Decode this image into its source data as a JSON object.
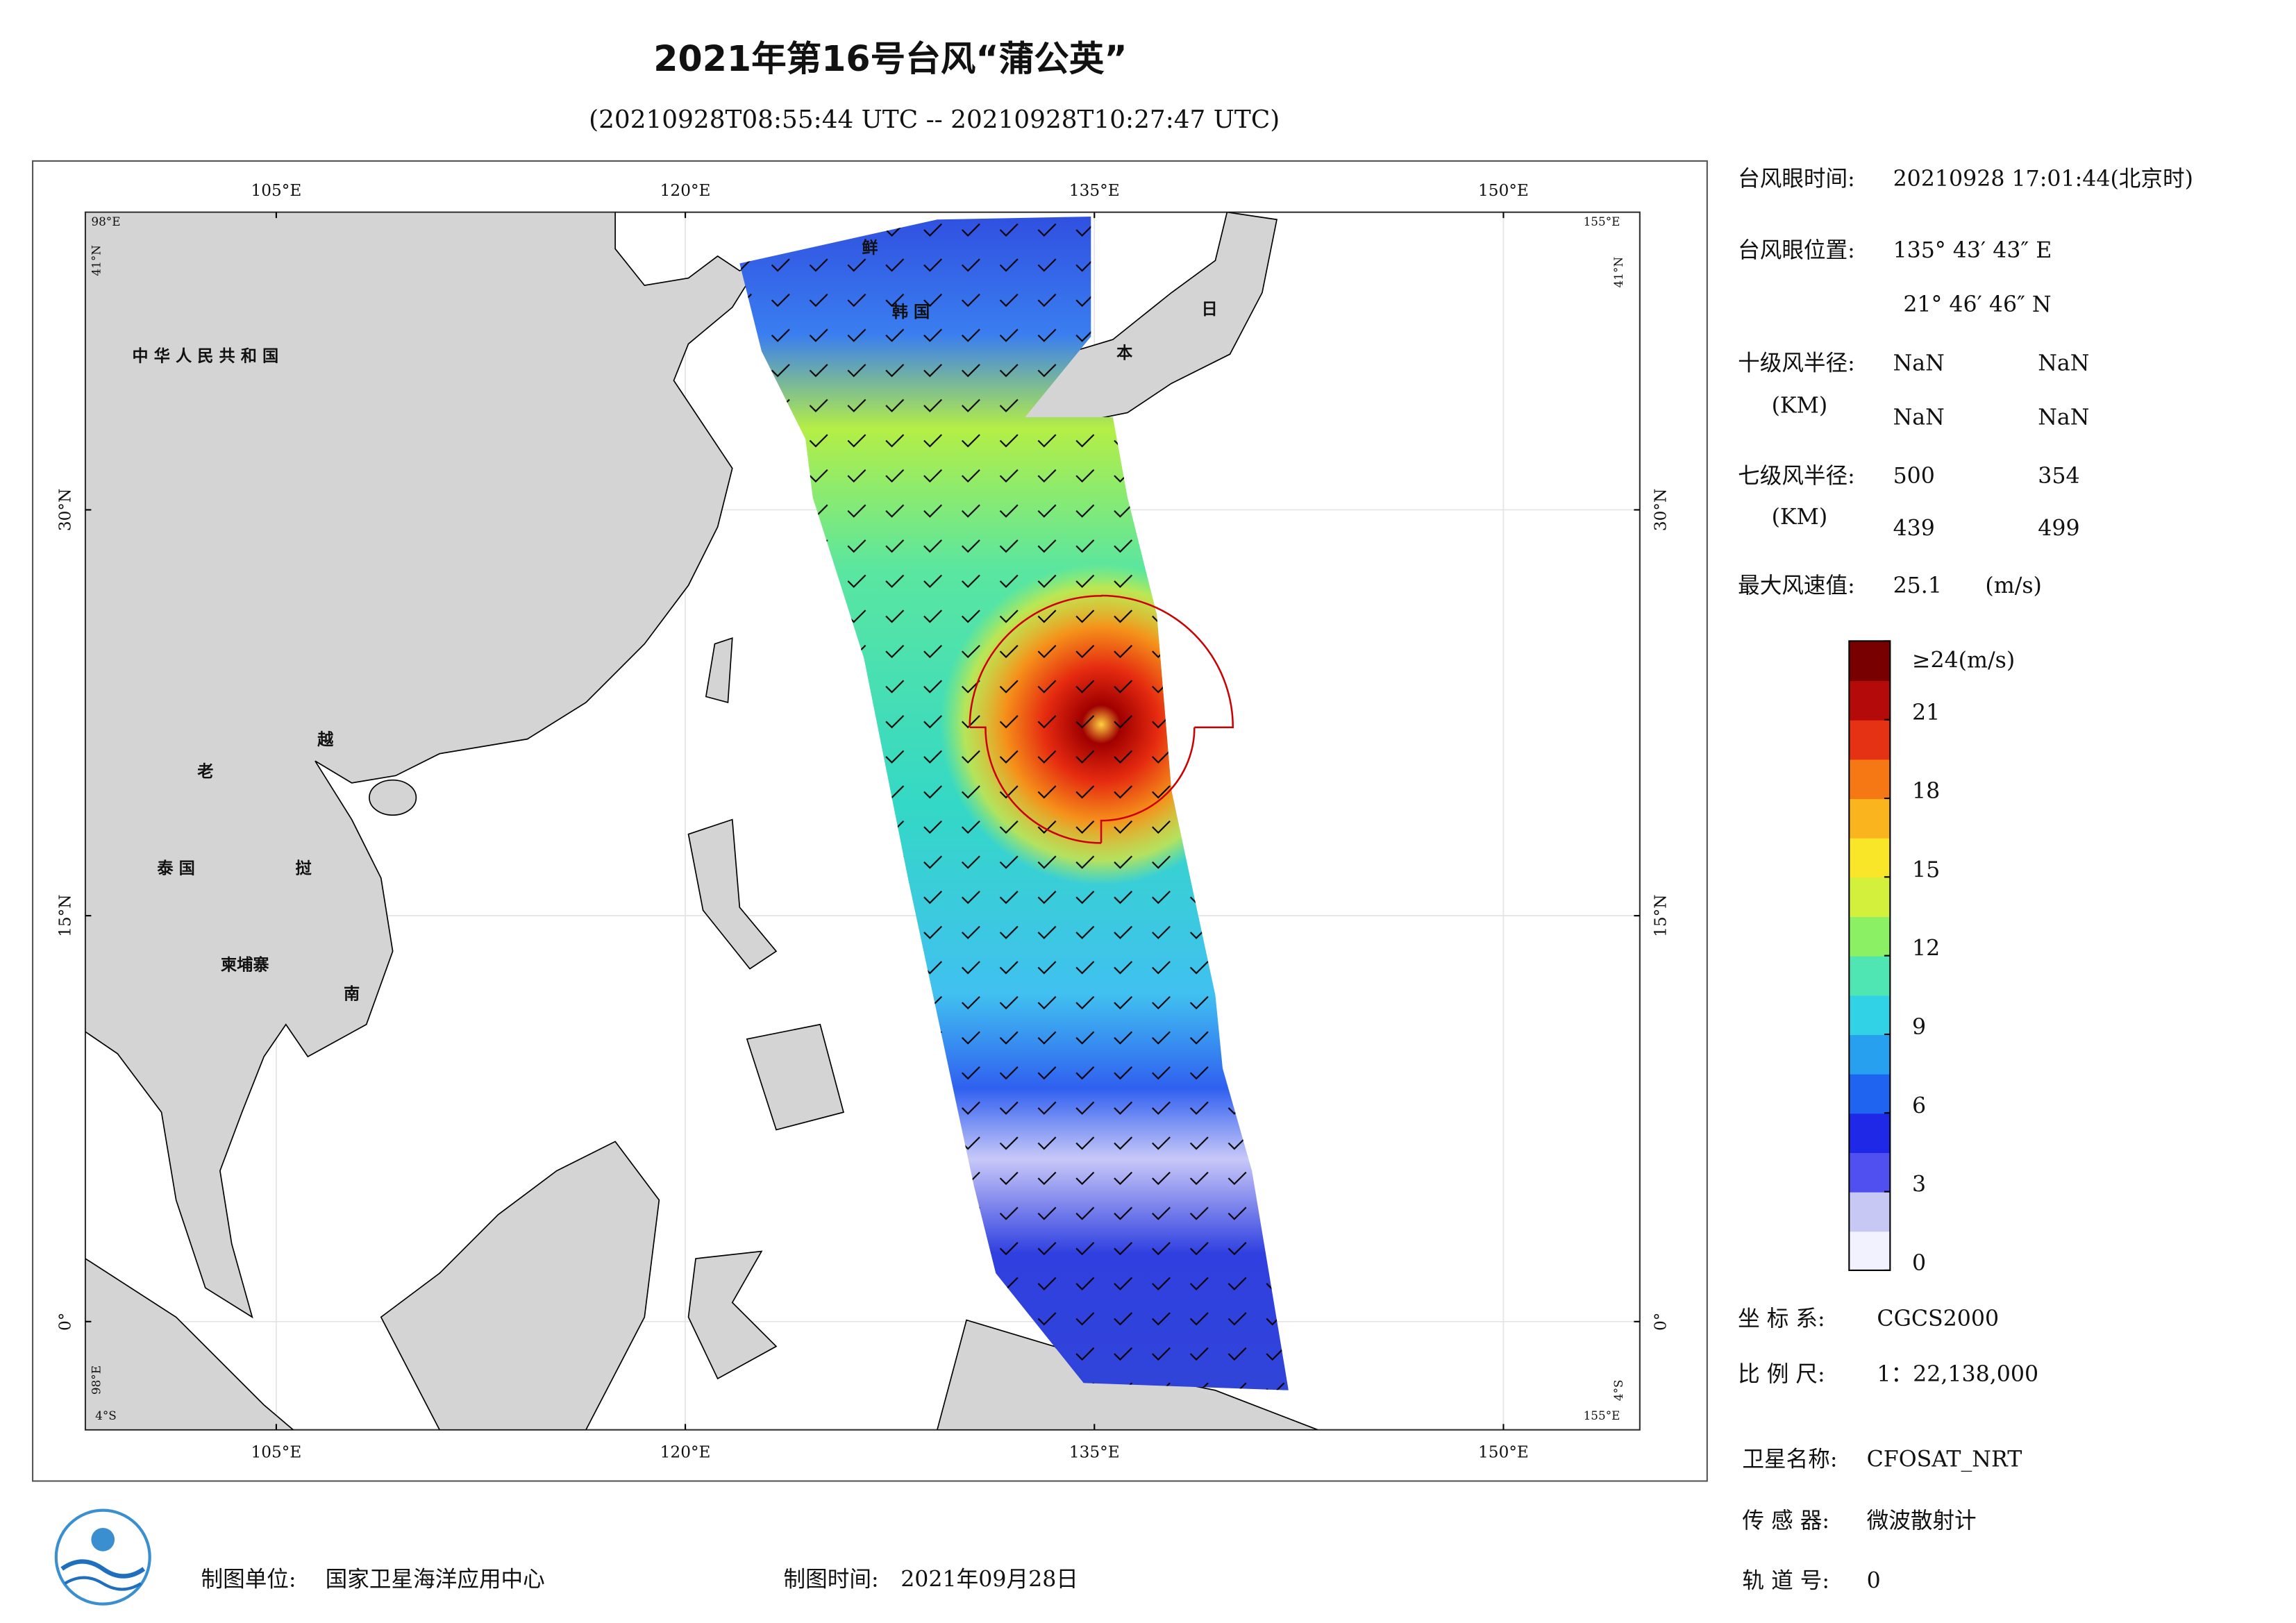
{
  "header": {
    "title": "2021年第16号台风“蒲公英”",
    "subtitle": "(20210928T08:55:44 UTC -- 20210928T10:27:47 UTC)"
  },
  "map": {
    "xlim": [
      98,
      155
    ],
    "ylim": [
      -4,
      41
    ],
    "xticks": [
      {
        "value": 105,
        "label": "105°E"
      },
      {
        "value": 120,
        "label": "120°E"
      },
      {
        "value": 135,
        "label": "135°E"
      },
      {
        "value": 150,
        "label": "150°E"
      }
    ],
    "yticks": [
      {
        "value": 0,
        "label": "0°"
      },
      {
        "value": 15,
        "label": "15°N"
      },
      {
        "value": 30,
        "label": "30°N"
      }
    ],
    "corner_labels": [
      "98°E",
      "41°N",
      "155°E",
      "41°N",
      "98°E",
      "4°S",
      "4°S",
      "155°E"
    ],
    "place_labels": [
      "中 华 人 民 共 和 国",
      "老",
      "越",
      "泰 国",
      "挝",
      "柬埔寨",
      "南",
      "鲜",
      "韩 国",
      "日",
      "本"
    ],
    "grid": true
  },
  "info": {
    "eye_time": {
      "label": "台风眼时间:",
      "value": "20210928 17:01:44(北京时)"
    },
    "eye_position": {
      "label": "台风眼位置:",
      "lon": "135° 43′ 43″ E",
      "lat": "21° 46′ 46″ N"
    },
    "radius_10": {
      "label": "十级风半径:",
      "unit": "(KM)",
      "values": [
        "NaN",
        "NaN",
        "NaN",
        "NaN"
      ]
    },
    "radius_7": {
      "label": "七级风半径:",
      "unit": "(KM)",
      "values": [
        500,
        354,
        439,
        499
      ]
    },
    "max_wind": {
      "label": "最大风速值:",
      "value": 25.1,
      "unit": "(m/s)"
    },
    "coord_system": {
      "label": "坐 标 系:",
      "value": "CGCS2000"
    },
    "scale": {
      "label": "比 例 尺:",
      "value": "1：22,138,000"
    },
    "satellite": {
      "label": "卫星名称:",
      "value": "CFOSAT_NRT"
    },
    "sensor": {
      "label": "传 感 器:",
      "value": "微波散射计"
    },
    "orbit": {
      "label": "轨 道 号:",
      "value": 0
    }
  },
  "colorbar": {
    "lim": [
      0,
      24
    ],
    "ticks": [
      0,
      3,
      6,
      9,
      12,
      15,
      18,
      21,
      {
        "value": 24,
        "label": "≥24(m/s)"
      }
    ],
    "colors": [
      "#f2f2ff",
      "#c8c8f5",
      "#5050f0",
      "#1e28e6",
      "#1e64f0",
      "#28a0f0",
      "#32d2e6",
      "#50e6b4",
      "#8cf064",
      "#d2f03c",
      "#fae628",
      "#fab41e",
      "#f57814",
      "#e63214",
      "#b40a0a",
      "#780000"
    ]
  },
  "footer": {
    "unit_label": "制图单位:",
    "unit": "国家卫星海洋应用中心",
    "time_label": "制图时间:",
    "time": "2021年09月28日"
  }
}
